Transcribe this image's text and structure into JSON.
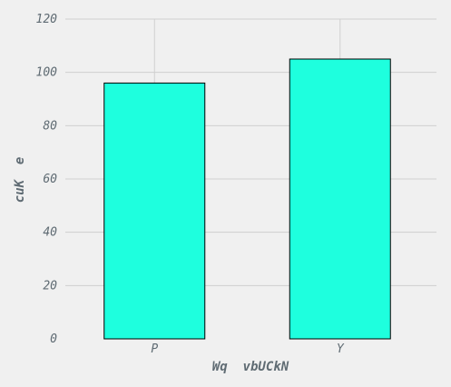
{
  "chart_data": {
    "type": "bar",
    "categories": [
      "P",
      "Y"
    ],
    "values": [
      96,
      105
    ],
    "xlabel": "Wq  vbUCkN",
    "ylabel": "cuK  e",
    "ylim": [
      0,
      120
    ],
    "yticks": [
      0,
      20,
      40,
      60,
      80,
      100,
      120
    ],
    "grid": true,
    "bar_color": "#1effde",
    "background_color": "#f0f0f0"
  }
}
